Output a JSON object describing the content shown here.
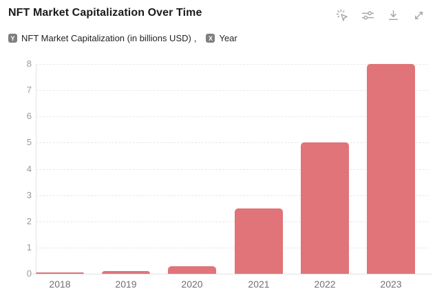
{
  "header": {
    "title": "NFT Market Capitalization Over Time"
  },
  "toolbar": {
    "icons": [
      "interact-mode-icon",
      "sliders-icon",
      "download-icon",
      "expand-icon"
    ]
  },
  "legend": {
    "y_badge": "Y",
    "y_label": "NFT Market Capitalization (in billions USD)",
    "separator": ",",
    "x_badge": "X",
    "x_label": "Year"
  },
  "colors": {
    "bar": "#e07478",
    "grid": "#e7e7e7",
    "axis_line": "#e3e3e3",
    "y_tick_text": "#999999",
    "x_tick_text": "#6f6f6f",
    "badge_bg": "#7f7f7f",
    "icon": "#a2a2a2",
    "title_text": "#1a1a1a"
  },
  "chart_data": {
    "type": "bar",
    "title": "NFT Market Capitalization Over Time",
    "categories": [
      "2018",
      "2019",
      "2020",
      "2021",
      "2022",
      "2023"
    ],
    "values": [
      0.05,
      0.1,
      0.3,
      2.5,
      5.0,
      8.0
    ],
    "xlabel": "Year",
    "ylabel": "NFT Market Capitalization (in billions USD)",
    "ylim": [
      0,
      8
    ],
    "yticks": [
      0,
      1,
      2,
      3,
      4,
      5,
      6,
      7,
      8
    ],
    "grid": true,
    "legend_position": "top-left",
    "bar_color": "#e07478"
  }
}
